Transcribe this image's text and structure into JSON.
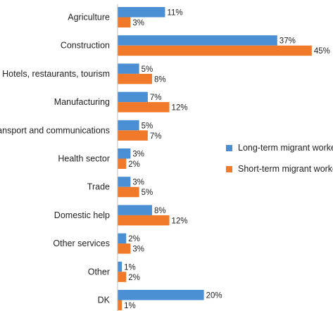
{
  "colors": {
    "long_term": "#4a8fd4",
    "short_term": "#f07a2a"
  },
  "chart_data": {
    "type": "bar",
    "orientation": "horizontal",
    "title": "",
    "xlabel": "",
    "ylabel": "",
    "xlim": [
      0,
      45
    ],
    "grid": false,
    "legend_position": "right",
    "categories": [
      "Agriculture",
      "Construction",
      "Hotels, restaurants, tourism",
      "Manufacturing",
      "Transport and communications",
      "Health sector",
      "Trade",
      "Domestic help",
      "Other services",
      "Other",
      "DK"
    ],
    "series": [
      {
        "name": "Long-term migrant workers",
        "color": "#4a8fd4",
        "values": [
          11,
          37,
          5,
          7,
          5,
          3,
          3,
          8,
          2,
          1,
          20
        ],
        "labels": [
          "11%",
          "37%",
          "5%",
          "7%",
          "5%",
          "3%",
          "3%",
          "8%",
          "2%",
          "1%",
          "20%"
        ]
      },
      {
        "name": "Short-term migrant workers",
        "color": "#f07a2a",
        "values": [
          3,
          45,
          8,
          12,
          7,
          2,
          5,
          12,
          3,
          2,
          1
        ],
        "labels": [
          "3%",
          "45%",
          "8%",
          "12%",
          "7%",
          "2%",
          "5%",
          "12%",
          "3%",
          "2%",
          "1%"
        ]
      }
    ]
  }
}
